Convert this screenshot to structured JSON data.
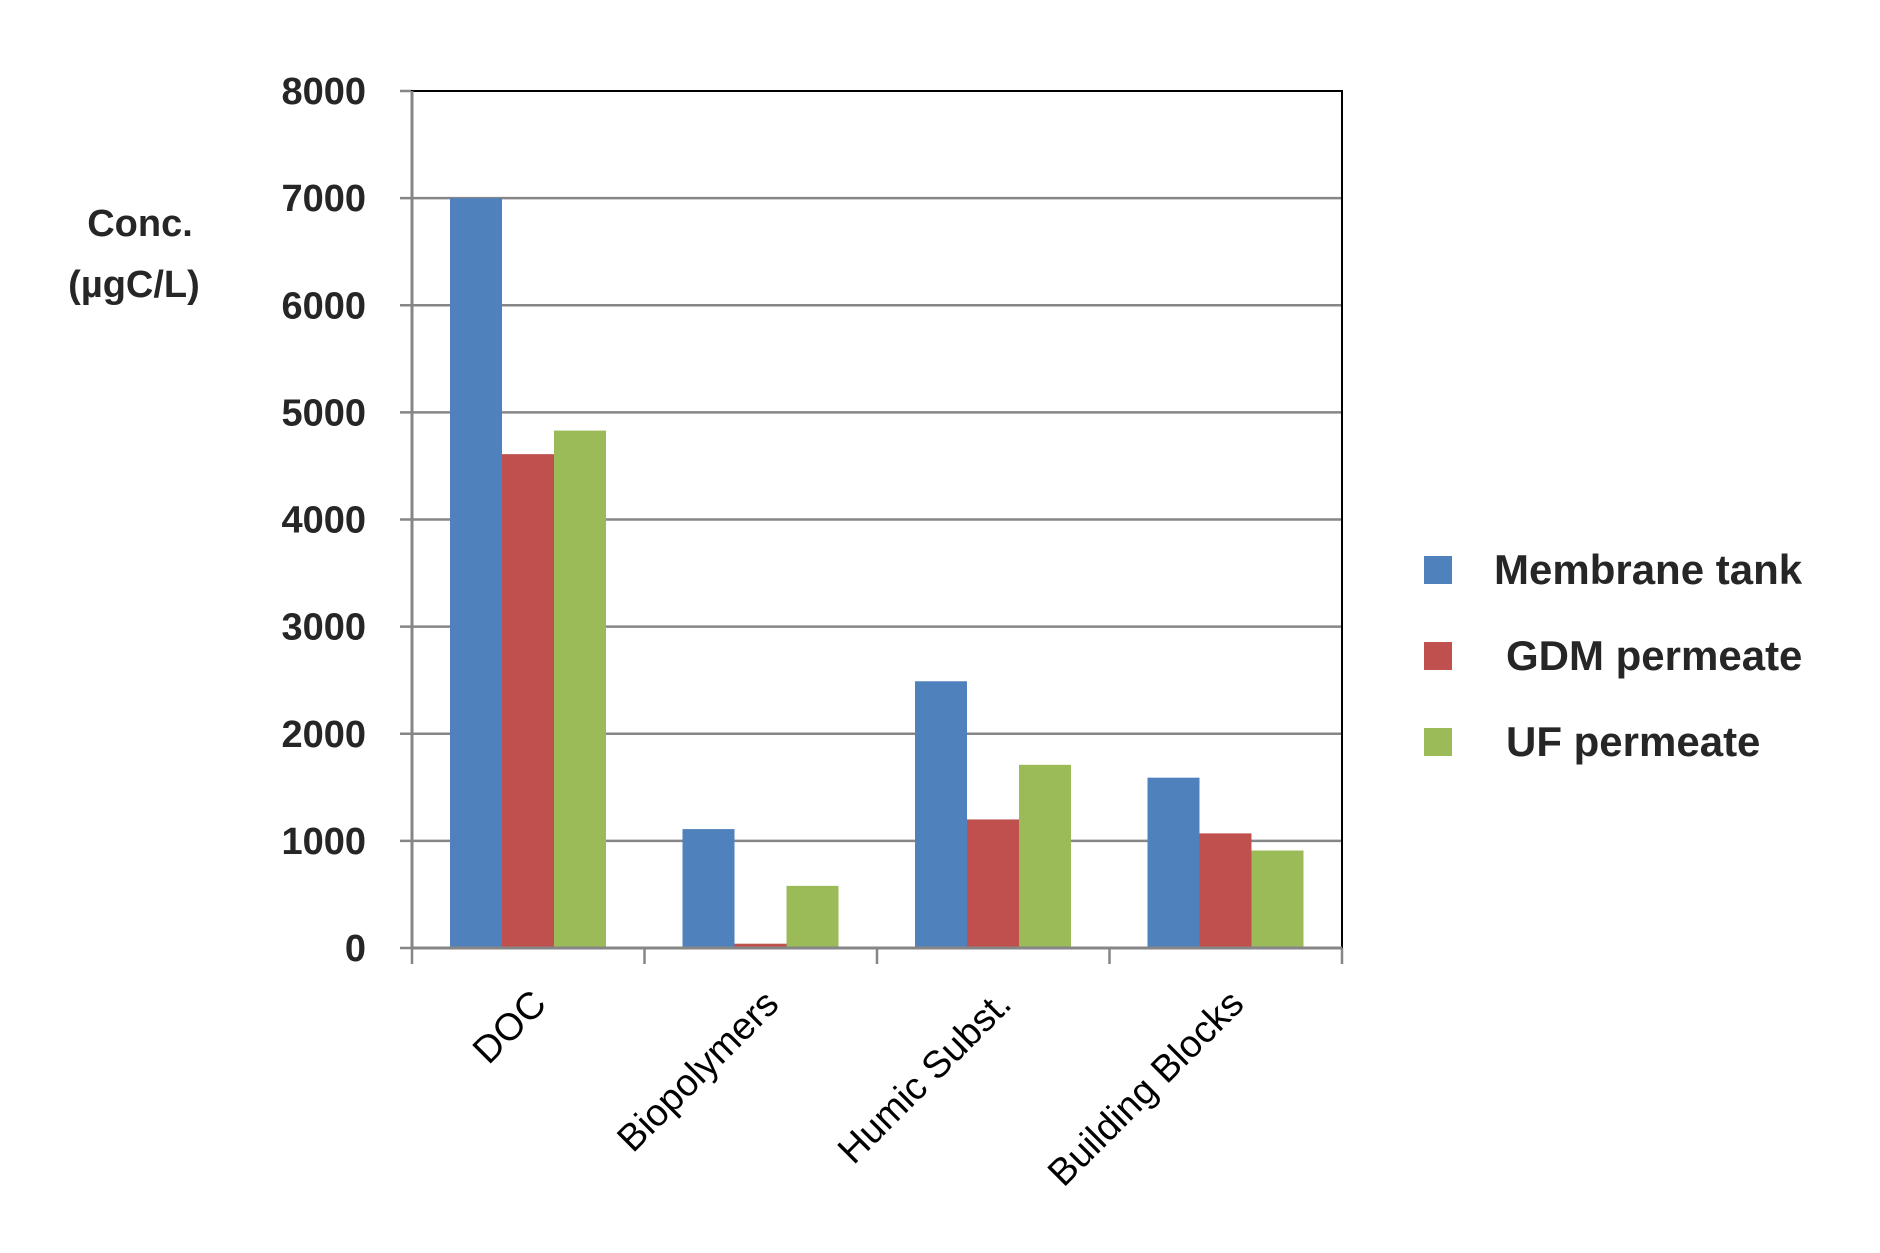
{
  "chart_data": {
    "type": "bar",
    "categories": [
      "DOC",
      "Biopolymers",
      "Humic Subst.",
      "Building Blocks"
    ],
    "series": [
      {
        "name": "Membrane tank",
        "values": [
          7000,
          1110,
          2490,
          1590
        ],
        "color": "#4F81BD"
      },
      {
        "name": "GDM permeate",
        "values": [
          4610,
          40,
          1200,
          1070
        ],
        "color": "#C0504D"
      },
      {
        "name": "UF permeate",
        "values": [
          4830,
          580,
          1710,
          910
        ],
        "color": "#9BBB59"
      }
    ],
    "ylabel_lines": [
      "Conc.",
      "(µgC/L)"
    ],
    "ylim": [
      0,
      8000
    ],
    "yticks": [
      "0",
      "1000",
      "2000",
      "3000",
      "4000",
      "5000",
      "6000",
      "7000",
      "8000"
    ],
    "grid": true,
    "legend_position": "right"
  }
}
